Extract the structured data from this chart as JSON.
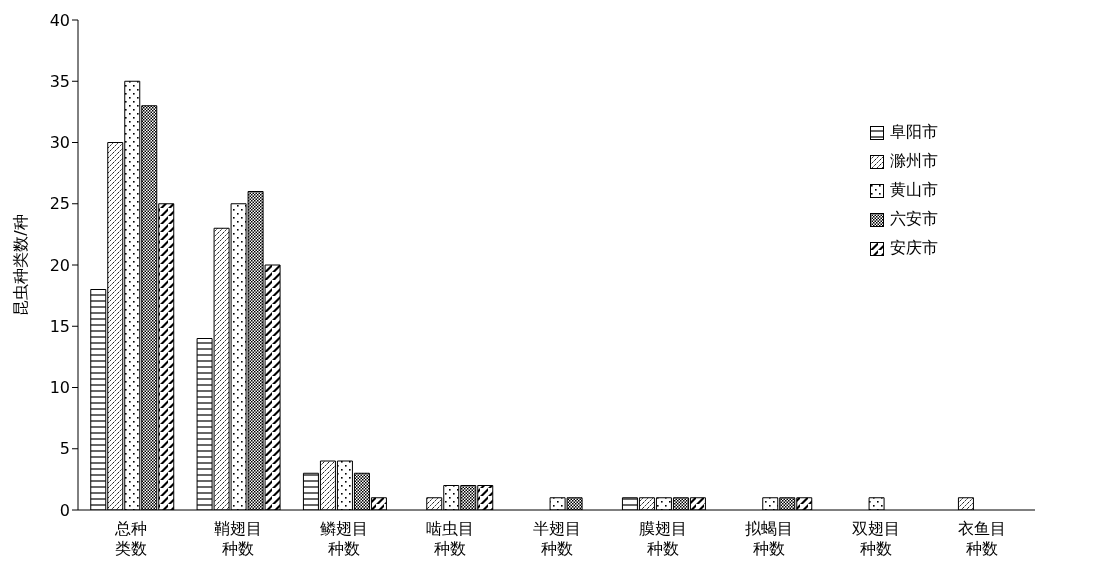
{
  "chart_data": {
    "type": "bar",
    "ylabel": "昆虫种类数/种",
    "categories": [
      "总种类数",
      "鞘翅目种数",
      "鳞翅目种数",
      "啮虫目种数",
      "半翅目种数",
      "膜翅目种数",
      "拟蝎目种数",
      "双翅目种数",
      "衣鱼目种数"
    ],
    "series": [
      {
        "name": "阜阳市",
        "color": "#000000",
        "values": [
          18,
          14,
          3,
          0,
          0,
          1,
          0,
          0,
          0
        ]
      },
      {
        "name": "滁州市",
        "color": "#000000",
        "values": [
          30,
          23,
          4,
          1,
          0,
          1,
          0,
          0,
          1
        ]
      },
      {
        "name": "黄山市",
        "color": "#000000",
        "values": [
          35,
          25,
          4,
          2,
          1,
          1,
          1,
          1,
          0
        ]
      },
      {
        "name": "六安市",
        "color": "#000000",
        "values": [
          33,
          26,
          3,
          2,
          1,
          1,
          1,
          0,
          0
        ]
      },
      {
        "name": "安庆市",
        "color": "#000000",
        "values": [
          25,
          20,
          1,
          2,
          0,
          1,
          1,
          0,
          0
        ]
      }
    ],
    "ylim": [
      0,
      40
    ],
    "yticks": [
      0,
      5,
      10,
      15,
      20,
      25,
      30,
      35,
      40
    ],
    "grid": false,
    "legend": "top right"
  }
}
